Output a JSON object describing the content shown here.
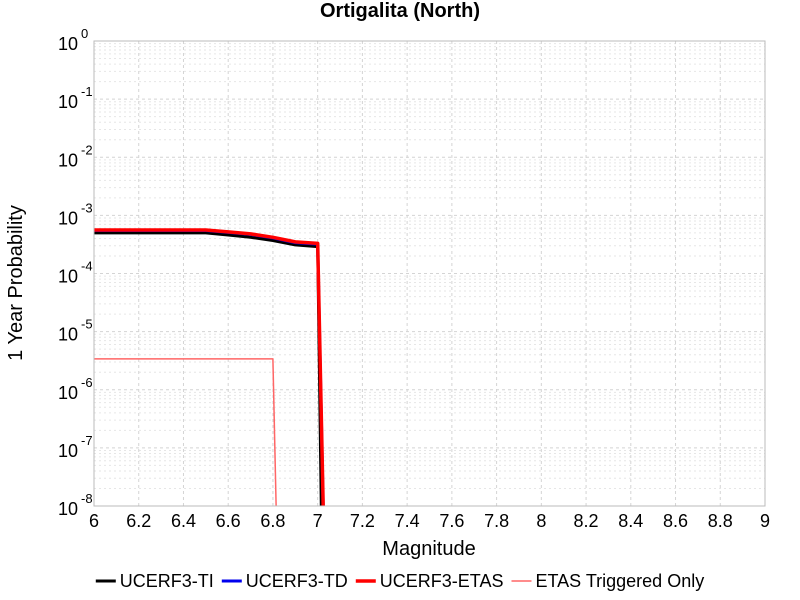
{
  "chart_data": {
    "type": "line",
    "title": "Ortigalita (North)",
    "xlabel": "Magnitude",
    "ylabel": "1 Year Probability",
    "xlim": [
      6,
      9
    ],
    "ylim": [
      1e-08,
      1
    ],
    "yscale": "log",
    "grid": true,
    "legend_position": "bottom",
    "x_ticks": [
      "6",
      "6.2",
      "6.4",
      "6.6",
      "6.8",
      "7",
      "7.2",
      "7.4",
      "7.6",
      "7.8",
      "8",
      "8.2",
      "8.4",
      "8.6",
      "8.8",
      "9"
    ],
    "y_ticks": [
      {
        "base": "10",
        "exp": "0",
        "value": 1
      },
      {
        "base": "10",
        "exp": "-1",
        "value": 0.1
      },
      {
        "base": "10",
        "exp": "-2",
        "value": 0.01
      },
      {
        "base": "10",
        "exp": "-3",
        "value": 0.001
      },
      {
        "base": "10",
        "exp": "-4",
        "value": 0.0001
      },
      {
        "base": "10",
        "exp": "-5",
        "value": 1e-05
      },
      {
        "base": "10",
        "exp": "-6",
        "value": 1e-06
      },
      {
        "base": "10",
        "exp": "-7",
        "value": 1e-07
      },
      {
        "base": "10",
        "exp": "-8",
        "value": 1e-08
      }
    ],
    "series": [
      {
        "name": "UCERF3-TI",
        "color": "#000000",
        "width": 3,
        "x": [
          6.0,
          6.1,
          6.2,
          6.3,
          6.4,
          6.5,
          6.6,
          6.7,
          6.8,
          6.9,
          7.0,
          7.02
        ],
        "y": [
          0.0005,
          0.0005,
          0.0005,
          0.0005,
          0.0005,
          0.0005,
          0.00046,
          0.00042,
          0.00037,
          0.00031,
          0.00029,
          1e-09
        ]
      },
      {
        "name": "UCERF3-TD",
        "color": "#0000ee",
        "width": 3,
        "x": [
          6.0,
          6.1,
          6.2,
          6.3,
          6.4,
          6.5,
          6.6,
          6.7,
          6.8,
          6.9,
          7.0,
          7.03
        ],
        "y": [
          0.00055,
          0.00055,
          0.00055,
          0.00055,
          0.00055,
          0.00055,
          0.00051,
          0.00047,
          0.00041,
          0.00034,
          0.00032,
          1e-09
        ]
      },
      {
        "name": "UCERF3-ETAS",
        "color": "#ff0000",
        "width": 3.5,
        "x": [
          6.0,
          6.1,
          6.2,
          6.3,
          6.4,
          6.5,
          6.6,
          6.7,
          6.8,
          6.9,
          7.0,
          7.03
        ],
        "y": [
          0.00056,
          0.00056,
          0.00056,
          0.00056,
          0.00056,
          0.00056,
          0.00052,
          0.00048,
          0.00042,
          0.00035,
          0.00033,
          1e-09
        ]
      },
      {
        "name": "ETAS Triggered Only",
        "color": "#ff6666",
        "width": 1.5,
        "x": [
          6.0,
          6.2,
          6.4,
          6.6,
          6.8,
          6.82
        ],
        "y": [
          3.4e-06,
          3.4e-06,
          3.4e-06,
          3.4e-06,
          3.4e-06,
          1e-09
        ]
      }
    ]
  }
}
